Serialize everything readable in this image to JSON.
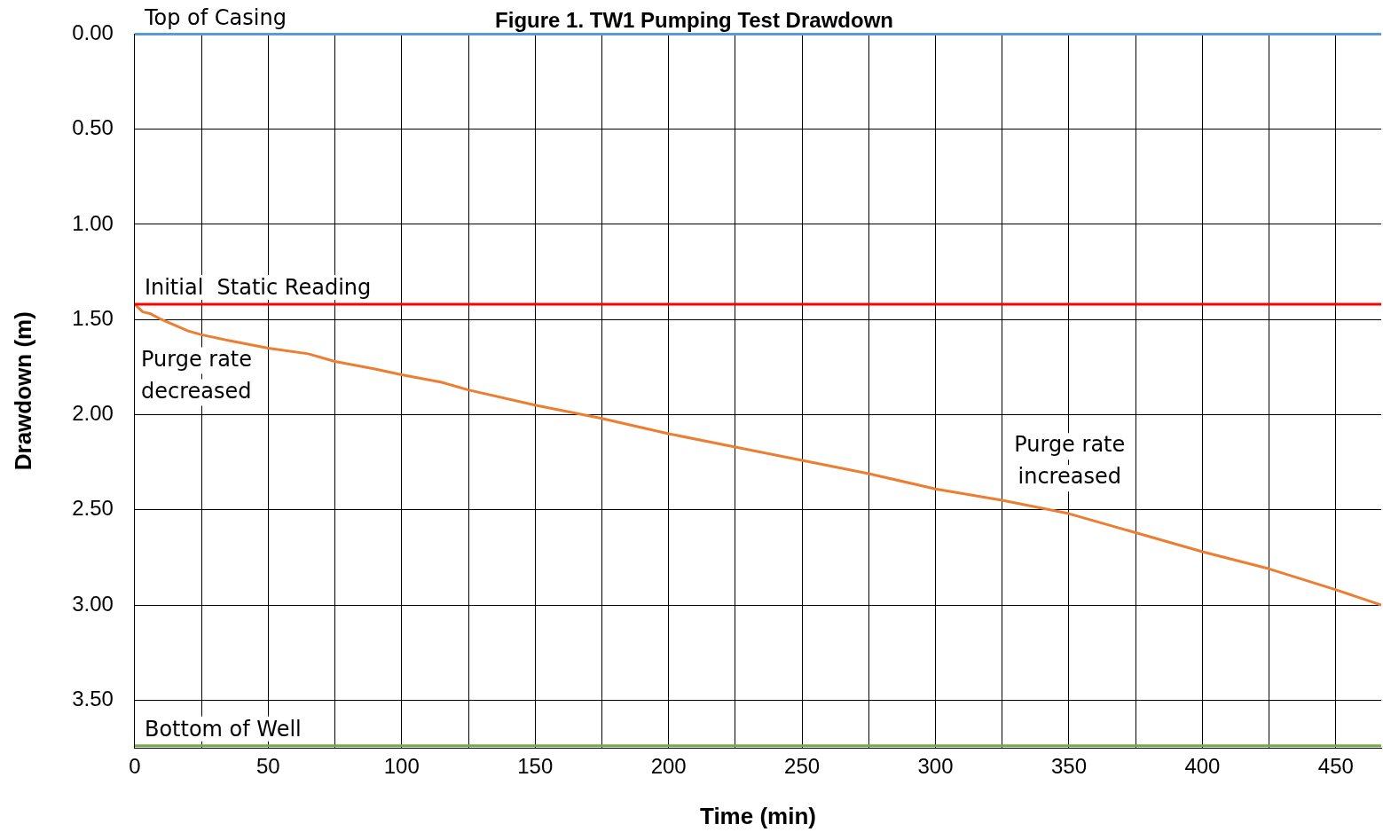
{
  "chart_data": {
    "type": "line",
    "title": "Figure 1. TW1 Pumping Test Drawdown",
    "xlabel": "Time (min)",
    "ylabel": "Drawdown (m)",
    "x": [
      0,
      3,
      6,
      10,
      15,
      20,
      25,
      35,
      50,
      65,
      75,
      90,
      100,
      115,
      125,
      150,
      175,
      200,
      225,
      250,
      275,
      300,
      325,
      350,
      375,
      400,
      425,
      450,
      467
    ],
    "series": [
      {
        "color": "#ed7d31",
        "values": [
          1.42,
          1.46,
          1.47,
          1.5,
          1.53,
          1.56,
          1.58,
          1.61,
          1.65,
          1.68,
          1.72,
          1.76,
          1.79,
          1.83,
          1.87,
          1.95,
          2.02,
          2.1,
          2.17,
          2.24,
          2.31,
          2.39,
          2.45,
          2.52,
          2.62,
          2.72,
          2.81,
          2.92,
          3.0
        ]
      }
    ],
    "xlim": [
      0,
      467
    ],
    "ylim": [
      3.75,
      0
    ],
    "xticks": [
      0,
      {
        "value": 25,
        "label": null
      },
      50,
      {
        "value": 75,
        "label": null
      },
      100,
      {
        "value": 125,
        "label": null
      },
      150,
      {
        "value": 175,
        "label": null
      },
      200,
      {
        "value": 225,
        "label": null
      },
      250,
      {
        "value": 275,
        "label": null
      },
      300,
      {
        "value": 325,
        "label": null
      },
      350,
      {
        "value": 375,
        "label": null
      },
      400,
      {
        "value": 425,
        "label": null
      },
      450
    ],
    "yticks": [
      {
        "value": 0,
        "label": "0.00"
      },
      {
        "value": 0.5,
        "label": "0.50"
      },
      {
        "value": 1,
        "label": "1.00"
      },
      {
        "value": 1.5,
        "label": "1.50"
      },
      {
        "value": 2,
        "label": "2.00"
      },
      {
        "value": 2.5,
        "label": "2.50"
      },
      {
        "value": 3,
        "label": "3.00"
      },
      {
        "value": 3.5,
        "label": "3.50"
      }
    ],
    "ref_lines": [
      {
        "axis": "y",
        "value": 0,
        "label": "Top of Casing",
        "color": "#5b9bd5"
      },
      {
        "axis": "y",
        "value": 1.42,
        "label": "Initial  Static Reading",
        "color": "#ff0000"
      },
      {
        "axis": "y",
        "value": 3.74,
        "label": "Bottom of Well",
        "color": "#70ad47"
      }
    ],
    "annotations": [
      "Purge rate\ndecreased",
      "Purge rate\nincreased"
    ],
    "grid": true,
    "legend": false,
    "marker": "none",
    "line_style": "solid"
  }
}
